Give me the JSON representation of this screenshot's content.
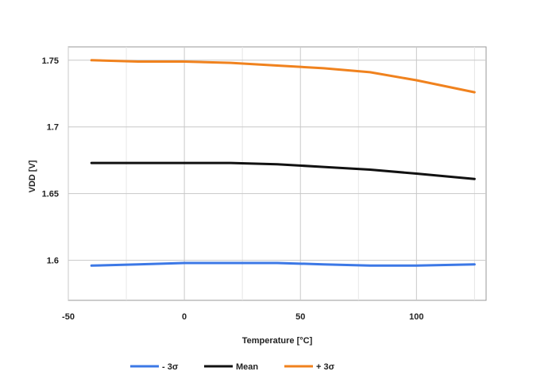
{
  "chart_data": {
    "type": "line",
    "title": "",
    "xlabel": "Temperature [°C]",
    "ylabel": "VDD [V]",
    "xlim": [
      -50,
      130
    ],
    "ylim": [
      1.57,
      1.76
    ],
    "x_ticks": [
      -50,
      0,
      50,
      100
    ],
    "y_ticks": [
      1.6,
      1.65,
      1.7,
      1.75
    ],
    "x_tick_labels": [
      "-50",
      "0",
      "50",
      "100"
    ],
    "y_tick_labels": [
      "1.6",
      "1.65",
      "1.7",
      "1.75"
    ],
    "grid": true,
    "legend_position": "bottom",
    "x": [
      -40,
      -20,
      0,
      20,
      40,
      60,
      80,
      100,
      125
    ],
    "series": [
      {
        "name": "- 3σ",
        "color": "#3c78e6",
        "values": [
          1.596,
          1.597,
          1.598,
          1.598,
          1.598,
          1.597,
          1.596,
          1.596,
          1.597
        ]
      },
      {
        "name": "Mean",
        "color": "#111111",
        "values": [
          1.673,
          1.673,
          1.673,
          1.673,
          1.672,
          1.67,
          1.668,
          1.665,
          1.661
        ]
      },
      {
        "name": "+ 3σ",
        "color": "#f0821e",
        "values": [
          1.75,
          1.749,
          1.749,
          1.748,
          1.746,
          1.744,
          1.741,
          1.735,
          1.726
        ]
      }
    ]
  }
}
